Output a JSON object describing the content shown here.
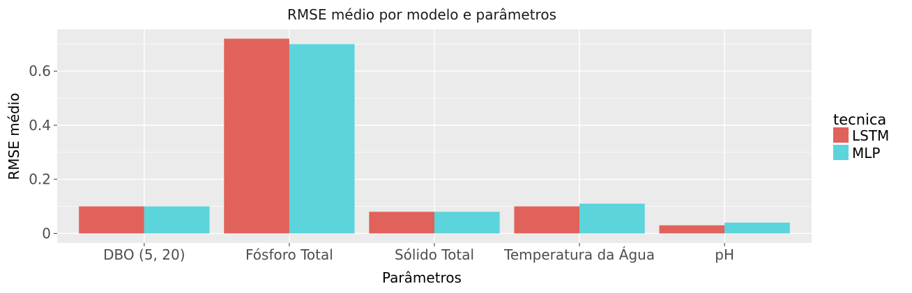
{
  "chart_data": {
    "type": "bar",
    "title": "RMSE médio por modelo e parâmetros",
    "xlabel": "Parâmetros",
    "ylabel": "RMSE médio",
    "categories": [
      "DBO (5, 20)",
      "Fósforo Total",
      "Sólido Total",
      "Temperatura da Água",
      "pH"
    ],
    "series": [
      {
        "name": "LSTM",
        "color": "#e0625a",
        "values": [
          0.1,
          0.72,
          0.08,
          0.1,
          0.03
        ]
      },
      {
        "name": "MLP",
        "color": "#5bd4dc",
        "values": [
          0.1,
          0.7,
          0.08,
          0.11,
          0.04
        ]
      }
    ],
    "yticks": [
      0,
      0.2,
      0.4,
      0.6
    ],
    "ytick_labels": [
      "0",
      "0.2",
      "0.4",
      "0.6"
    ],
    "ylim": [
      -0.035,
      0.755
    ],
    "grid": true,
    "legend": {
      "title": "tecnica",
      "position": "right"
    },
    "panel_background": "#ebebeb",
    "grid_color": "#ffffff"
  }
}
